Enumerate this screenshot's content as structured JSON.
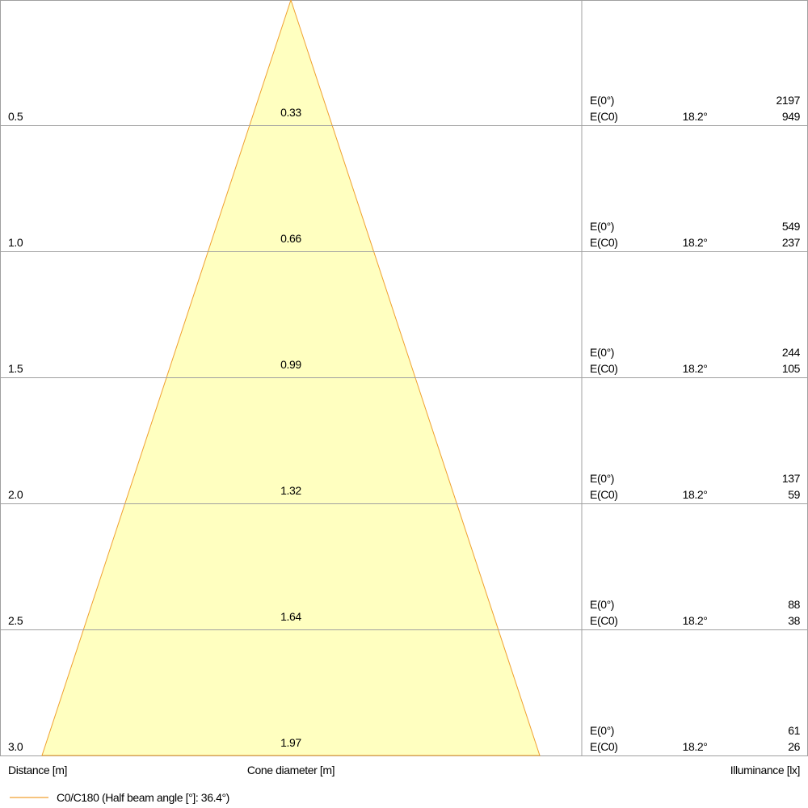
{
  "rows": [
    {
      "distance": "0.5",
      "diameter": "0.33",
      "e0": "2197",
      "angle": "18.2°",
      "ec0": "949"
    },
    {
      "distance": "1.0",
      "diameter": "0.66",
      "e0": "549",
      "angle": "18.2°",
      "ec0": "237"
    },
    {
      "distance": "1.5",
      "diameter": "0.99",
      "e0": "244",
      "angle": "18.2°",
      "ec0": "105"
    },
    {
      "distance": "2.0",
      "diameter": "1.32",
      "e0": "137",
      "angle": "18.2°",
      "ec0": "59"
    },
    {
      "distance": "2.5",
      "diameter": "1.64",
      "e0": "88",
      "angle": "18.2°",
      "ec0": "38"
    },
    {
      "distance": "3.0",
      "diameter": "1.97",
      "e0": "61",
      "angle": "18.2°",
      "ec0": "26"
    }
  ],
  "labels": {
    "e0": "E(0°)",
    "ec0": "E(C0)"
  },
  "footer": {
    "distance": "Distance [m]",
    "diameter": "Cone diameter [m]",
    "illuminance": "Illuminance [lx]"
  },
  "legend": "C0/C180 (Half beam angle [°]: 36.4°)"
}
